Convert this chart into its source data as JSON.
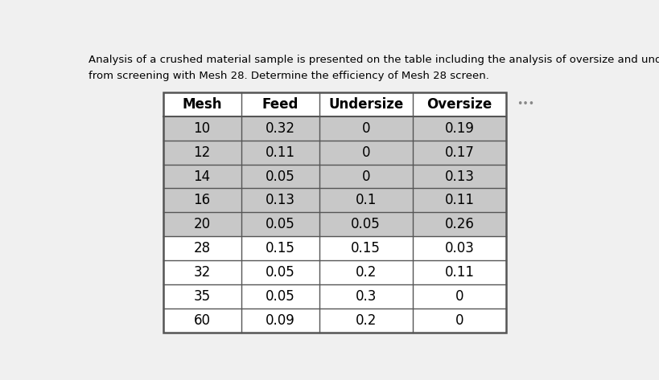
{
  "title_line1": "Analysis of a crushed material sample is presented on the table including the analysis of oversize and undersize portions",
  "title_line2": "from screening with Mesh 28. Determine the efficiency of Mesh 28 screen.",
  "col_headers": [
    "Mesh",
    "Feed",
    "Undersize",
    "Oversize"
  ],
  "rows": [
    [
      "10",
      "0.32",
      "0",
      "0.19"
    ],
    [
      "12",
      "0.11",
      "0",
      "0.17"
    ],
    [
      "14",
      "0.05",
      "0",
      "0.13"
    ],
    [
      "16",
      "0.13",
      "0.1",
      "0.11"
    ],
    [
      "20",
      "0.05",
      "0.05",
      "0.26"
    ],
    [
      "28",
      "0.15",
      "0.15",
      "0.03"
    ],
    [
      "32",
      "0.05",
      "0.2",
      "0.11"
    ],
    [
      "35",
      "0.05",
      "0.3",
      "0"
    ],
    [
      "60",
      "0.09",
      "0.2",
      "0"
    ]
  ],
  "row_bg": [
    "#c8c8c8",
    "#c8c8c8",
    "#c8c8c8",
    "#c8c8c8",
    "#c8c8c8",
    "#ffffff",
    "#ffffff",
    "#ffffff",
    "#ffffff"
  ],
  "header_bg": "#ffffff",
  "border_color": "#555555",
  "text_color": "#000000",
  "background_color": "#f0f0f0",
  "dots_text": "•••",
  "title_fontsize": 9.5,
  "header_fontsize": 12,
  "cell_fontsize": 12
}
